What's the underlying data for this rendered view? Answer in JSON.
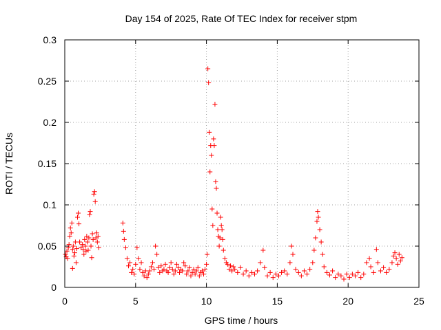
{
  "chart_data": {
    "type": "scatter",
    "title": "Day 154 of 2025, Rate Of TEC Index for receiver stpm",
    "xlabel": "GPS time / hours",
    "ylabel": "ROTI / TECUs",
    "xlim": [
      0,
      25
    ],
    "ylim": [
      0,
      0.3
    ],
    "xticks": [
      0,
      5,
      10,
      15,
      20,
      25
    ],
    "yticks": [
      0,
      0.05,
      0.1,
      0.15,
      0.2,
      0.25,
      0.3
    ],
    "xtick_labels": [
      "0",
      "5",
      "10",
      "15",
      "20",
      "25"
    ],
    "ytick_labels": [
      "0",
      "0.05",
      "0.1",
      "0.15",
      "0.2",
      "0.25",
      "0.3"
    ],
    "grid": true,
    "marker": "plus",
    "color": "#ff0000",
    "series": [
      {
        "name": "ROTI",
        "points": [
          [
            0.05,
            0.04
          ],
          [
            0.1,
            0.037
          ],
          [
            0.15,
            0.044
          ],
          [
            0.2,
            0.035
          ],
          [
            0.25,
            0.048
          ],
          [
            0.3,
            0.052
          ],
          [
            0.35,
            0.062
          ],
          [
            0.4,
            0.072
          ],
          [
            0.45,
            0.066
          ],
          [
            0.5,
            0.078
          ],
          [
            0.55,
            0.046
          ],
          [
            0.6,
            0.05
          ],
          [
            0.65,
            0.038
          ],
          [
            0.7,
            0.042
          ],
          [
            0.75,
            0.055
          ],
          [
            0.8,
            0.03
          ],
          [
            0.55,
            0.023
          ],
          [
            0.85,
            0.047
          ],
          [
            0.9,
            0.085
          ],
          [
            0.95,
            0.09
          ],
          [
            1.0,
            0.077
          ],
          [
            1.05,
            0.055
          ],
          [
            1.15,
            0.048
          ],
          [
            1.25,
            0.052
          ],
          [
            1.3,
            0.046
          ],
          [
            1.35,
            0.04
          ],
          [
            1.4,
            0.058
          ],
          [
            1.45,
            0.05
          ],
          [
            1.5,
            0.044
          ],
          [
            1.55,
            0.062
          ],
          [
            1.6,
            0.055
          ],
          [
            1.65,
            0.045
          ],
          [
            1.7,
            0.06
          ],
          [
            1.75,
            0.088
          ],
          [
            1.8,
            0.092
          ],
          [
            1.85,
            0.05
          ],
          [
            1.9,
            0.036
          ],
          [
            1.95,
            0.065
          ],
          [
            2.0,
            0.058
          ],
          [
            2.05,
            0.113
          ],
          [
            2.1,
            0.116
          ],
          [
            2.15,
            0.104
          ],
          [
            2.2,
            0.06
          ],
          [
            2.25,
            0.066
          ],
          [
            2.3,
            0.055
          ],
          [
            2.35,
            0.062
          ],
          [
            2.4,
            0.048
          ],
          [
            4.1,
            0.078
          ],
          [
            4.15,
            0.068
          ],
          [
            4.2,
            0.058
          ],
          [
            4.3,
            0.048
          ],
          [
            4.4,
            0.035
          ],
          [
            4.5,
            0.026
          ],
          [
            4.6,
            0.03
          ],
          [
            4.7,
            0.018
          ],
          [
            4.8,
            0.022
          ],
          [
            4.9,
            0.016
          ],
          [
            5.0,
            0.028
          ],
          [
            5.1,
            0.048
          ],
          [
            5.2,
            0.035
          ],
          [
            5.3,
            0.022
          ],
          [
            5.4,
            0.03
          ],
          [
            5.5,
            0.018
          ],
          [
            5.6,
            0.014
          ],
          [
            5.7,
            0.02
          ],
          [
            5.8,
            0.012
          ],
          [
            5.9,
            0.016
          ],
          [
            6.0,
            0.02
          ],
          [
            6.1,
            0.025
          ],
          [
            6.2,
            0.03
          ],
          [
            6.3,
            0.022
          ],
          [
            6.4,
            0.05
          ],
          [
            6.5,
            0.04
          ],
          [
            6.6,
            0.024
          ],
          [
            6.7,
            0.018
          ],
          [
            6.8,
            0.026
          ],
          [
            6.9,
            0.02
          ],
          [
            7.0,
            0.022
          ],
          [
            7.1,
            0.028
          ],
          [
            7.2,
            0.02
          ],
          [
            7.3,
            0.018
          ],
          [
            7.4,
            0.024
          ],
          [
            7.5,
            0.03
          ],
          [
            7.6,
            0.022
          ],
          [
            7.7,
            0.016
          ],
          [
            7.8,
            0.02
          ],
          [
            7.9,
            0.028
          ],
          [
            8.0,
            0.024
          ],
          [
            8.1,
            0.018
          ],
          [
            8.2,
            0.022
          ],
          [
            8.3,
            0.02
          ],
          [
            8.4,
            0.03
          ],
          [
            8.5,
            0.026
          ],
          [
            8.6,
            0.016
          ],
          [
            8.7,
            0.02
          ],
          [
            8.8,
            0.024
          ],
          [
            8.9,
            0.014
          ],
          [
            9.0,
            0.018
          ],
          [
            9.1,
            0.022
          ],
          [
            9.2,
            0.016
          ],
          [
            9.3,
            0.02
          ],
          [
            9.4,
            0.024
          ],
          [
            9.5,
            0.014
          ],
          [
            9.6,
            0.018
          ],
          [
            9.7,
            0.02
          ],
          [
            9.8,
            0.016
          ],
          [
            9.9,
            0.022
          ],
          [
            10.0,
            0.028
          ],
          [
            10.05,
            0.04
          ],
          [
            10.1,
            0.265
          ],
          [
            10.15,
            0.248
          ],
          [
            10.2,
            0.188
          ],
          [
            10.25,
            0.14
          ],
          [
            10.3,
            0.172
          ],
          [
            10.35,
            0.16
          ],
          [
            10.4,
            0.095
          ],
          [
            10.45,
            0.075
          ],
          [
            10.5,
            0.18
          ],
          [
            10.55,
            0.172
          ],
          [
            10.6,
            0.222
          ],
          [
            10.65,
            0.128
          ],
          [
            10.7,
            0.12
          ],
          [
            10.75,
            0.09
          ],
          [
            10.8,
            0.07
          ],
          [
            10.85,
            0.062
          ],
          [
            10.9,
            0.05
          ],
          [
            10.95,
            0.06
          ],
          [
            11.0,
            0.085
          ],
          [
            11.05,
            0.075
          ],
          [
            11.1,
            0.07
          ],
          [
            11.15,
            0.058
          ],
          [
            11.2,
            0.045
          ],
          [
            11.3,
            0.035
          ],
          [
            11.4,
            0.03
          ],
          [
            11.5,
            0.028
          ],
          [
            11.6,
            0.022
          ],
          [
            11.7,
            0.026
          ],
          [
            11.8,
            0.02
          ],
          [
            11.9,
            0.025
          ],
          [
            12.0,
            0.022
          ],
          [
            12.2,
            0.018
          ],
          [
            12.4,
            0.024
          ],
          [
            12.6,
            0.016
          ],
          [
            12.8,
            0.02
          ],
          [
            13.0,
            0.014
          ],
          [
            13.2,
            0.018
          ],
          [
            13.4,
            0.016
          ],
          [
            13.6,
            0.02
          ],
          [
            13.8,
            0.03
          ],
          [
            14.0,
            0.045
          ],
          [
            14.1,
            0.024
          ],
          [
            14.3,
            0.014
          ],
          [
            14.5,
            0.018
          ],
          [
            14.7,
            0.012
          ],
          [
            14.9,
            0.016
          ],
          [
            15.1,
            0.014
          ],
          [
            15.3,
            0.018
          ],
          [
            15.5,
            0.02
          ],
          [
            15.7,
            0.016
          ],
          [
            15.9,
            0.03
          ],
          [
            16.0,
            0.05
          ],
          [
            16.1,
            0.04
          ],
          [
            16.3,
            0.022
          ],
          [
            16.5,
            0.018
          ],
          [
            16.7,
            0.014
          ],
          [
            16.9,
            0.02
          ],
          [
            17.1,
            0.016
          ],
          [
            17.3,
            0.022
          ],
          [
            17.5,
            0.03
          ],
          [
            17.6,
            0.045
          ],
          [
            17.7,
            0.06
          ],
          [
            17.8,
            0.08
          ],
          [
            17.85,
            0.092
          ],
          [
            17.9,
            0.085
          ],
          [
            18.0,
            0.07
          ],
          [
            18.1,
            0.055
          ],
          [
            18.2,
            0.04
          ],
          [
            18.3,
            0.025
          ],
          [
            18.5,
            0.018
          ],
          [
            18.7,
            0.015
          ],
          [
            18.9,
            0.02
          ],
          [
            19.1,
            0.012
          ],
          [
            19.3,
            0.016
          ],
          [
            19.5,
            0.014
          ],
          [
            19.7,
            0.01
          ],
          [
            19.9,
            0.016
          ],
          [
            20.1,
            0.012
          ],
          [
            20.3,
            0.016
          ],
          [
            20.5,
            0.014
          ],
          [
            20.7,
            0.018
          ],
          [
            20.9,
            0.012
          ],
          [
            21.1,
            0.016
          ],
          [
            21.3,
            0.03
          ],
          [
            21.5,
            0.035
          ],
          [
            21.6,
            0.025
          ],
          [
            21.8,
            0.018
          ],
          [
            22.0,
            0.046
          ],
          [
            22.1,
            0.03
          ],
          [
            22.3,
            0.02
          ],
          [
            22.5,
            0.024
          ],
          [
            22.7,
            0.018
          ],
          [
            22.9,
            0.022
          ],
          [
            23.1,
            0.03
          ],
          [
            23.2,
            0.038
          ],
          [
            23.3,
            0.042
          ],
          [
            23.4,
            0.035
          ],
          [
            23.5,
            0.028
          ],
          [
            23.6,
            0.04
          ],
          [
            23.7,
            0.032
          ],
          [
            23.8,
            0.036
          ]
        ]
      }
    ]
  }
}
